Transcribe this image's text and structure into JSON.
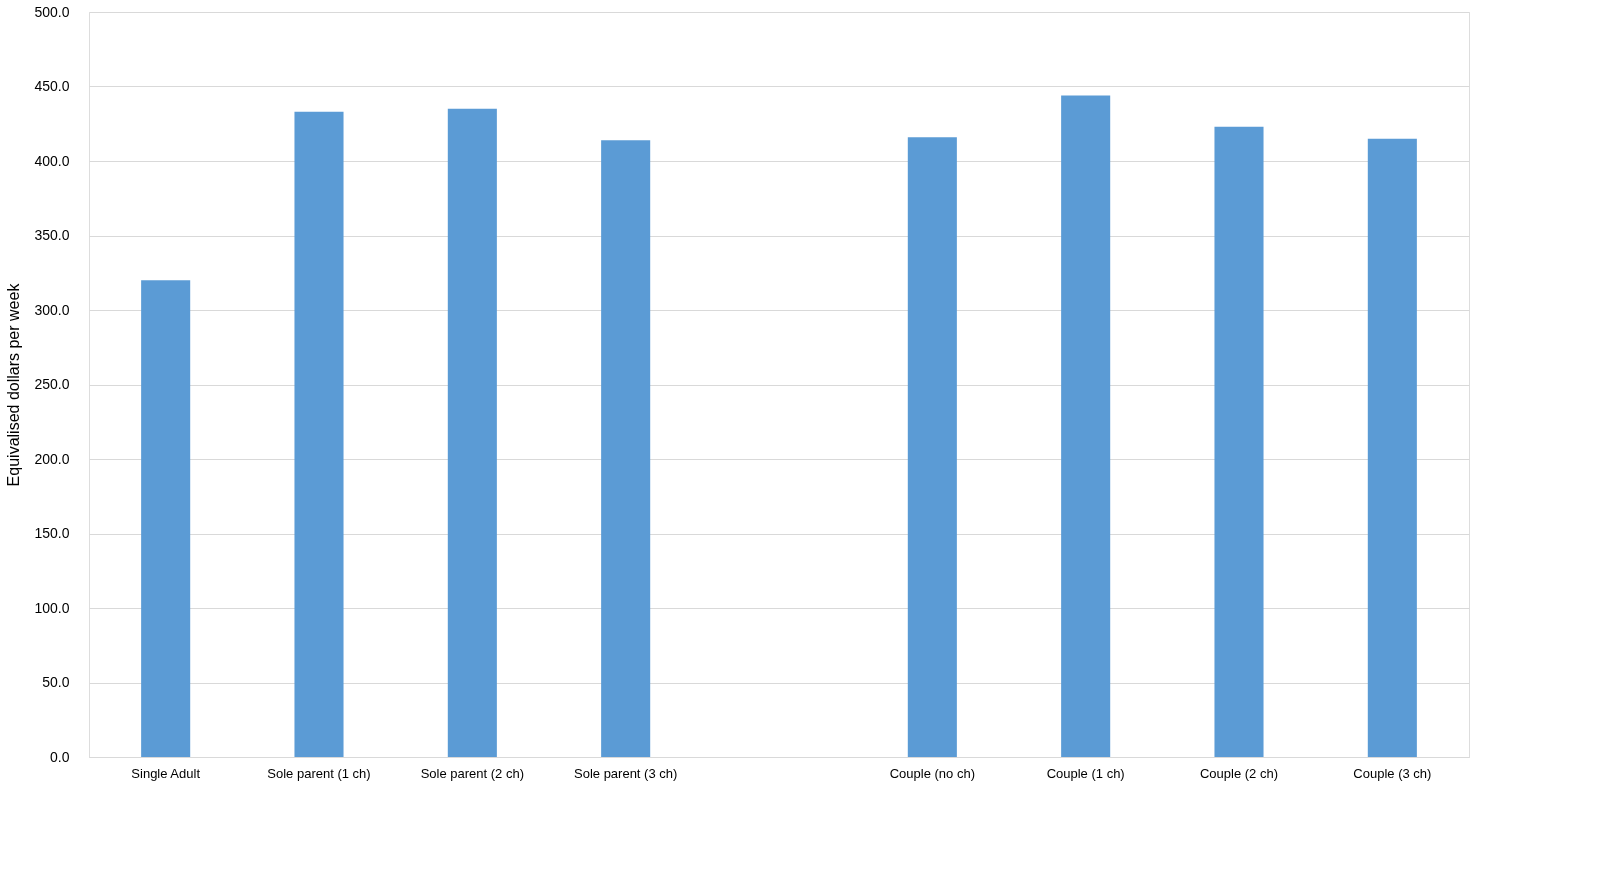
{
  "chart_data": {
    "type": "bar",
    "ylabel": "Equivalised dollars per week",
    "categories": [
      "Single Adult",
      "Sole parent (1 ch)",
      "Sole parent (2 ch)",
      "Sole parent (3 ch)",
      null,
      "Couple (no ch)",
      "Couple (1 ch)",
      "Couple (2 ch)",
      "Couple (3 ch)"
    ],
    "values": [
      320,
      433,
      435,
      414,
      null,
      416,
      444,
      423,
      415
    ],
    "color": "#5b9bd5",
    "ylim": [
      0,
      500
    ],
    "yticks": [
      {
        "value": 0,
        "label": "0.0"
      },
      {
        "value": 50,
        "label": "50.0"
      },
      {
        "value": 100,
        "label": "100.0"
      },
      {
        "value": 150,
        "label": "150.0"
      },
      {
        "value": 200,
        "label": "200.0"
      },
      {
        "value": 250,
        "label": "250.0"
      },
      {
        "value": 300,
        "label": "300.0"
      },
      {
        "value": 350,
        "label": "350.0"
      },
      {
        "value": 400,
        "label": "400.0"
      },
      {
        "value": 450,
        "label": "450.0"
      },
      {
        "value": 500,
        "label": "500.0"
      }
    ],
    "grid": "y"
  }
}
